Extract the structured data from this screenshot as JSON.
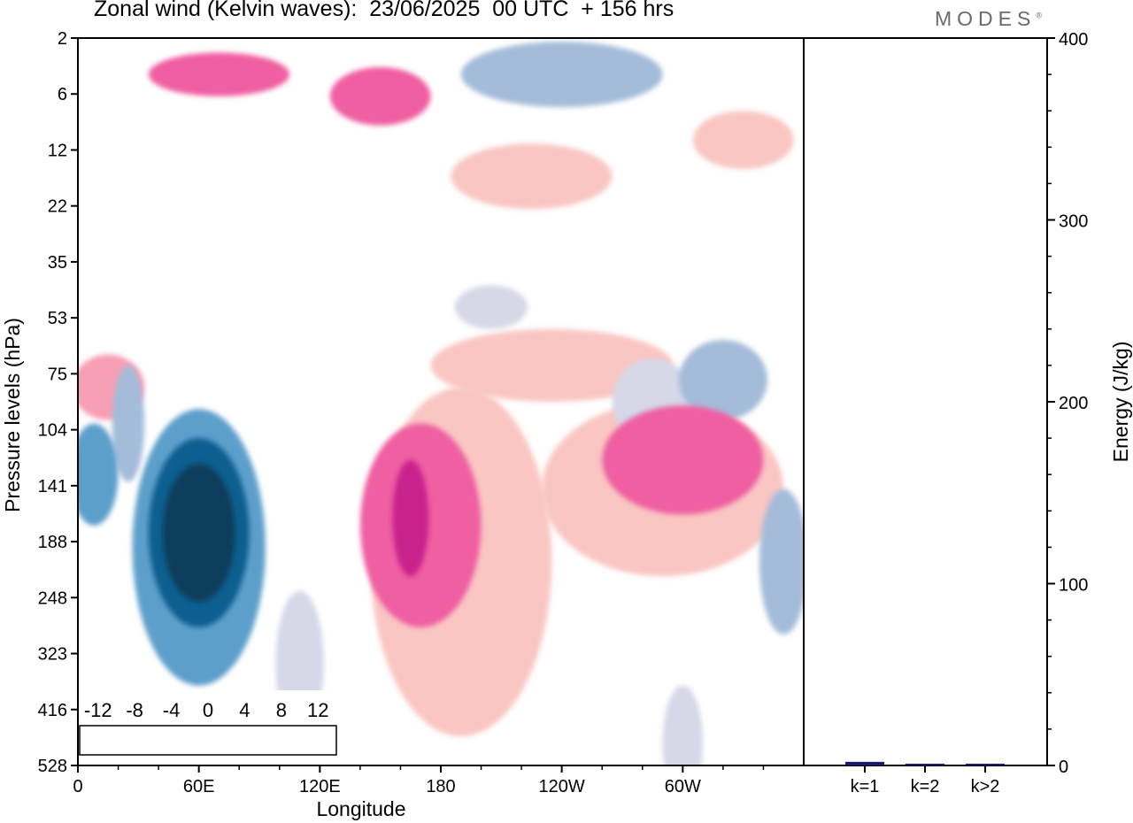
{
  "header": {
    "title": "Zonal wind (Kelvin waves):  23/06/2025  00 UTC  + 156 hrs",
    "brand": "MODES",
    "brand_mark": "®"
  },
  "chart_data": [
    {
      "type": "heatmap",
      "variable": "Zonal wind (Kelvin waves)",
      "xlabel": "Longitude",
      "ylabel": "Pressure levels (hPa)",
      "x_tick_labels": [
        "0",
        "60E",
        "120E",
        "180",
        "120W",
        "60W"
      ],
      "x_ticks_deg": [
        0,
        60,
        120,
        180,
        240,
        300
      ],
      "xlim": [
        0,
        360
      ],
      "y_tick_labels": [
        "2",
        "6",
        "12",
        "22",
        "35",
        "53",
        "75",
        "104",
        "141",
        "188",
        "248",
        "323",
        "416",
        "528"
      ],
      "colorbar": {
        "labels": [
          "-12",
          "-8",
          "-4",
          "0",
          "4",
          "8",
          "12"
        ],
        "label_levels": [
          -12,
          -8,
          -4,
          0,
          4,
          8,
          12
        ],
        "levels": [
          -14,
          -12,
          -10,
          -8,
          -6,
          -4,
          -2,
          0,
          2,
          4,
          6,
          8,
          10,
          12,
          14
        ],
        "colors": [
          "#0b3d5c",
          "#0f5f8f",
          "#1f7bb7",
          "#5d9fcb",
          "#a4bcd9",
          "#d6d8e8",
          "#ffffff",
          "#ffffff",
          "#f9c6c3",
          "#f79fb4",
          "#ef5fa2",
          "#c9208c",
          "#a00e79",
          "#5b0a64"
        ]
      },
      "features": [
        {
          "lon": 60,
          "lev": 0.68,
          "value": -13.5,
          "rx": 18,
          "ry": 0.095
        },
        {
          "lon": 60,
          "lev": 0.68,
          "value": -10.5,
          "rx": 25,
          "ry": 0.13
        },
        {
          "lon": 60,
          "lev": 0.7,
          "value": -6.5,
          "rx": 33,
          "ry": 0.19
        },
        {
          "lon": 8,
          "lev": 0.6,
          "value": -7,
          "rx": 12,
          "ry": 0.07
        },
        {
          "lon": 25,
          "lev": 0.53,
          "value": -6,
          "rx": 8,
          "ry": 0.08
        },
        {
          "lon": 165,
          "lev": 0.66,
          "value": 8.5,
          "rx": 9,
          "ry": 0.08
        },
        {
          "lon": 170,
          "lev": 0.67,
          "value": 6.5,
          "rx": 30,
          "ry": 0.14
        },
        {
          "lon": 190,
          "lev": 0.72,
          "value": 3,
          "rx": 45,
          "ry": 0.24
        },
        {
          "lon": 300,
          "lev": 0.58,
          "value": 6.5,
          "rx": 40,
          "ry": 0.075
        },
        {
          "lon": 290,
          "lev": 0.62,
          "value": 3,
          "rx": 60,
          "ry": 0.12
        },
        {
          "lon": 320,
          "lev": 0.47,
          "value": -6,
          "rx": 22,
          "ry": 0.055
        },
        {
          "lon": 350,
          "lev": 0.72,
          "value": -5,
          "rx": 12,
          "ry": 0.1
        },
        {
          "lon": 15,
          "lev": 0.48,
          "value": 4.5,
          "rx": 18,
          "ry": 0.045
        },
        {
          "lon": 235,
          "lev": 0.45,
          "value": 3,
          "rx": 60,
          "ry": 0.05
        },
        {
          "lon": 150,
          "lev": 0.08,
          "value": 7.5,
          "rx": 25,
          "ry": 0.04
        },
        {
          "lon": 240,
          "lev": 0.05,
          "value": -6,
          "rx": 50,
          "ry": 0.045
        },
        {
          "lon": 225,
          "lev": 0.19,
          "value": 2.5,
          "rx": 40,
          "ry": 0.045
        },
        {
          "lon": 205,
          "lev": 0.37,
          "value": -3,
          "rx": 18,
          "ry": 0.03
        },
        {
          "lon": 70,
          "lev": 0.05,
          "value": 6,
          "rx": 35,
          "ry": 0.03
        },
        {
          "lon": 285,
          "lev": 0.5,
          "value": -3,
          "rx": 20,
          "ry": 0.06
        },
        {
          "lon": 330,
          "lev": 0.14,
          "value": 2.5,
          "rx": 25,
          "ry": 0.04
        },
        {
          "lon": 300,
          "lev": 0.97,
          "value": -3,
          "rx": 10,
          "ry": 0.08
        },
        {
          "lon": 110,
          "lev": 0.86,
          "value": -3,
          "rx": 12,
          "ry": 0.1
        }
      ]
    },
    {
      "type": "bar",
      "categories": [
        "k=1",
        "k=2",
        "k>2"
      ],
      "values": [
        2,
        0.5,
        0.5
      ],
      "ylabel": "Energy (J/kg)",
      "ylim": [
        0,
        400
      ],
      "y_tick_labels": [
        "0",
        "100",
        "200",
        "300",
        "400"
      ],
      "y_ticks": [
        0,
        100,
        200,
        300,
        400
      ],
      "bar_color": "#1a1a6e"
    }
  ]
}
